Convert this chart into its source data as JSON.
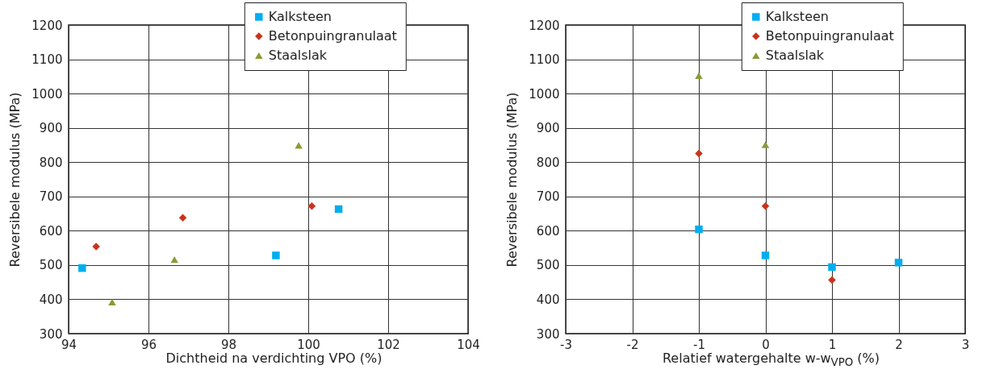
{
  "chart_data": [
    {
      "type": "scatter",
      "xlabel": "Dichtheid na verdichting VPO (%)",
      "ylabel": "Reversibele modulus (MPa)",
      "xlim": [
        94,
        104
      ],
      "xticks": [
        94,
        96,
        98,
        100,
        102,
        104
      ],
      "ylim": [
        300,
        1200
      ],
      "yticks": [
        300,
        400,
        500,
        600,
        700,
        800,
        900,
        1000,
        1100,
        1200
      ],
      "grid": true,
      "legend": "top right",
      "series": [
        {
          "name": "Kalksteen",
          "color": "#00aeef",
          "marker": "square",
          "x": [
            94.34,
            99.19,
            100.76
          ],
          "values": [
            491,
            528,
            663
          ]
        },
        {
          "name": "Betonpuingranulaat",
          "color": "#c8341c",
          "marker": "diamond",
          "x": [
            94.69,
            96.86,
            100.09
          ],
          "values": [
            554,
            638,
            672
          ]
        },
        {
          "name": "Staalslak",
          "color": "#8c9a35",
          "marker": "triangle",
          "x": [
            95.09,
            96.65,
            99.76
          ],
          "values": [
            392,
            516,
            849
          ]
        }
      ]
    },
    {
      "type": "scatter",
      "xlabel": "Relatief watergehalte w-w$_{VPO}$ (%)",
      "ylabel": "Reversibele modulus (MPa)",
      "xlim": [
        -3,
        3
      ],
      "xticks": [
        -3,
        -2,
        -1,
        0,
        1,
        2,
        3
      ],
      "ylim": [
        300,
        1200
      ],
      "yticks": [
        300,
        400,
        500,
        600,
        700,
        800,
        900,
        1000,
        1100,
        1200
      ],
      "grid": true,
      "legend": "top right",
      "series": [
        {
          "name": "Kalksteen",
          "color": "#00aeef",
          "marker": "square",
          "x": [
            -1,
            0,
            1,
            2
          ],
          "values": [
            604,
            528,
            494,
            507
          ]
        },
        {
          "name": "Betonpuingranulaat",
          "color": "#c8341c",
          "marker": "diamond",
          "x": [
            -1,
            0,
            1
          ],
          "values": [
            825,
            672,
            456
          ]
        },
        {
          "name": "Staalslak",
          "color": "#8c9a35",
          "marker": "triangle",
          "x": [
            -1,
            0
          ],
          "values": [
            1052,
            851
          ]
        }
      ]
    }
  ]
}
